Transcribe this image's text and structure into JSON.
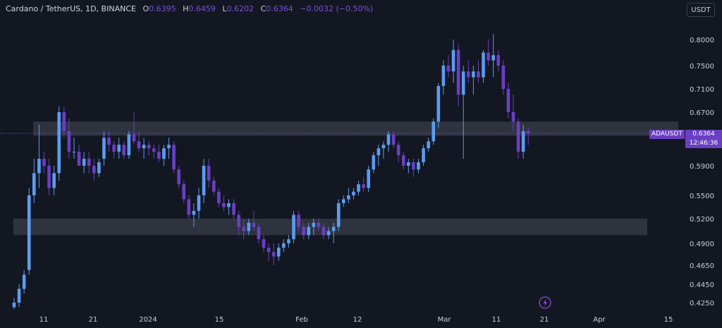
{
  "header": {
    "symbol": "Cardano / TetherUS, 1D, BINANCE",
    "o_label": "O",
    "o_value": "0.6395",
    "h_label": "H",
    "h_value": "0.6459",
    "l_label": "L",
    "l_value": "0.6202",
    "c_label": "C",
    "c_value": "0.6364",
    "change": "−0.0032 (−0.50%)"
  },
  "unit_button": "USDT",
  "price_tag": "ADAUSDT",
  "last_price": {
    "price": "0.6364",
    "countdown": "12:46:36"
  },
  "lightning_icon": "lightning-icon",
  "colors": {
    "background": "#131722",
    "up": "#5b9cf0",
    "down": "#6a3fc4",
    "zone": "#3a3d48",
    "tag": "#6a3fc4"
  },
  "chart_data": {
    "type": "candlestick",
    "title": "Cardano / TetherUS, 1D, BINANCE",
    "ylim": [
      0.42,
      0.83
    ],
    "y_ticks": [
      "0.8000",
      "0.7500",
      "0.7100",
      "0.6700",
      "0.6364",
      "0.5900",
      "0.5500",
      "0.5200",
      "0.4900",
      "0.4650",
      "0.4450",
      "0.4250"
    ],
    "x_tick_labels": [
      "11",
      "21",
      "2024",
      "15",
      "Feb",
      "12",
      "Mar",
      "11",
      "21",
      "Apr",
      "15"
    ],
    "zones": [
      {
        "low": 0.633,
        "high": 0.655
      },
      {
        "low": 0.5,
        "high": 0.52
      }
    ],
    "last_price": 0.6364,
    "candles": [
      [
        0.42,
        0.43,
        0.418,
        0.425
      ],
      [
        0.425,
        0.445,
        0.42,
        0.44
      ],
      [
        0.44,
        0.46,
        0.435,
        0.455
      ],
      [
        0.46,
        0.56,
        0.455,
        0.55
      ],
      [
        0.55,
        0.6,
        0.54,
        0.58
      ],
      [
        0.58,
        0.65,
        0.56,
        0.6
      ],
      [
        0.6,
        0.61,
        0.58,
        0.59
      ],
      [
        0.59,
        0.6,
        0.55,
        0.56
      ],
      [
        0.56,
        0.59,
        0.55,
        0.58
      ],
      [
        0.58,
        0.68,
        0.57,
        0.67
      ],
      [
        0.67,
        0.68,
        0.63,
        0.64
      ],
      [
        0.64,
        0.66,
        0.6,
        0.61
      ],
      [
        0.61,
        0.63,
        0.6,
        0.61
      ],
      [
        0.61,
        0.62,
        0.59,
        0.59
      ],
      [
        0.59,
        0.61,
        0.58,
        0.6
      ],
      [
        0.6,
        0.61,
        0.58,
        0.59
      ],
      [
        0.59,
        0.6,
        0.57,
        0.58
      ],
      [
        0.58,
        0.6,
        0.575,
        0.595
      ],
      [
        0.6,
        0.64,
        0.59,
        0.63
      ],
      [
        0.63,
        0.64,
        0.61,
        0.62
      ],
      [
        0.62,
        0.625,
        0.6,
        0.61
      ],
      [
        0.61,
        0.63,
        0.6,
        0.62
      ],
      [
        0.62,
        0.625,
        0.6,
        0.605
      ],
      [
        0.605,
        0.64,
        0.6,
        0.635
      ],
      [
        0.635,
        0.67,
        0.62,
        0.625
      ],
      [
        0.625,
        0.64,
        0.61,
        0.615
      ],
      [
        0.615,
        0.63,
        0.6,
        0.62
      ],
      [
        0.62,
        0.625,
        0.605,
        0.615
      ],
      [
        0.615,
        0.62,
        0.6,
        0.61
      ],
      [
        0.61,
        0.62,
        0.595,
        0.6
      ],
      [
        0.6,
        0.62,
        0.59,
        0.615
      ],
      [
        0.615,
        0.63,
        0.6,
        0.62
      ],
      [
        0.62,
        0.625,
        0.58,
        0.585
      ],
      [
        0.585,
        0.59,
        0.56,
        0.565
      ],
      [
        0.565,
        0.57,
        0.54,
        0.545
      ],
      [
        0.545,
        0.55,
        0.52,
        0.525
      ],
      [
        0.525,
        0.54,
        0.51,
        0.53
      ],
      [
        0.53,
        0.56,
        0.52,
        0.55
      ],
      [
        0.55,
        0.6,
        0.54,
        0.59
      ],
      [
        0.59,
        0.6,
        0.56,
        0.57
      ],
      [
        0.57,
        0.575,
        0.55,
        0.555
      ],
      [
        0.555,
        0.56,
        0.535,
        0.54
      ],
      [
        0.54,
        0.55,
        0.53,
        0.535
      ],
      [
        0.535,
        0.545,
        0.525,
        0.54
      ],
      [
        0.54,
        0.545,
        0.52,
        0.525
      ],
      [
        0.525,
        0.53,
        0.5,
        0.51
      ],
      [
        0.51,
        0.52,
        0.495,
        0.505
      ],
      [
        0.505,
        0.52,
        0.5,
        0.515
      ],
      [
        0.515,
        0.53,
        0.505,
        0.51
      ],
      [
        0.51,
        0.515,
        0.49,
        0.495
      ],
      [
        0.495,
        0.5,
        0.48,
        0.485
      ],
      [
        0.485,
        0.49,
        0.47,
        0.48
      ],
      [
        0.48,
        0.49,
        0.465,
        0.475
      ],
      [
        0.475,
        0.49,
        0.47,
        0.485
      ],
      [
        0.485,
        0.495,
        0.48,
        0.49
      ],
      [
        0.49,
        0.5,
        0.485,
        0.495
      ],
      [
        0.495,
        0.53,
        0.49,
        0.525
      ],
      [
        0.525,
        0.53,
        0.505,
        0.51
      ],
      [
        0.51,
        0.515,
        0.495,
        0.5
      ],
      [
        0.5,
        0.515,
        0.495,
        0.51
      ],
      [
        0.51,
        0.52,
        0.5,
        0.515
      ],
      [
        0.515,
        0.52,
        0.505,
        0.51
      ],
      [
        0.51,
        0.515,
        0.495,
        0.5
      ],
      [
        0.5,
        0.51,
        0.495,
        0.505
      ],
      [
        0.505,
        0.515,
        0.49,
        0.51
      ],
      [
        0.51,
        0.545,
        0.505,
        0.54
      ],
      [
        0.54,
        0.55,
        0.535,
        0.545
      ],
      [
        0.545,
        0.56,
        0.54,
        0.55
      ],
      [
        0.55,
        0.56,
        0.545,
        0.555
      ],
      [
        0.555,
        0.57,
        0.55,
        0.565
      ],
      [
        0.565,
        0.575,
        0.555,
        0.56
      ],
      [
        0.56,
        0.59,
        0.555,
        0.585
      ],
      [
        0.585,
        0.61,
        0.58,
        0.605
      ],
      [
        0.605,
        0.62,
        0.59,
        0.615
      ],
      [
        0.615,
        0.625,
        0.6,
        0.62
      ],
      [
        0.62,
        0.64,
        0.61,
        0.635
      ],
      [
        0.635,
        0.64,
        0.615,
        0.62
      ],
      [
        0.62,
        0.625,
        0.595,
        0.605
      ],
      [
        0.605,
        0.61,
        0.585,
        0.59
      ],
      [
        0.59,
        0.6,
        0.58,
        0.595
      ],
      [
        0.595,
        0.6,
        0.575,
        0.585
      ],
      [
        0.585,
        0.6,
        0.58,
        0.595
      ],
      [
        0.595,
        0.62,
        0.59,
        0.615
      ],
      [
        0.615,
        0.63,
        0.61,
        0.625
      ],
      [
        0.625,
        0.66,
        0.62,
        0.655
      ],
      [
        0.655,
        0.72,
        0.645,
        0.715
      ],
      [
        0.715,
        0.76,
        0.7,
        0.75
      ],
      [
        0.75,
        0.77,
        0.73,
        0.74
      ],
      [
        0.74,
        0.8,
        0.72,
        0.78
      ],
      [
        0.78,
        0.79,
        0.68,
        0.7
      ],
      [
        0.7,
        0.75,
        0.6,
        0.74
      ],
      [
        0.74,
        0.76,
        0.72,
        0.73
      ],
      [
        0.73,
        0.75,
        0.7,
        0.74
      ],
      [
        0.74,
        0.76,
        0.72,
        0.73
      ],
      [
        0.73,
        0.78,
        0.72,
        0.775
      ],
      [
        0.775,
        0.8,
        0.75,
        0.76
      ],
      [
        0.76,
        0.81,
        0.73,
        0.77
      ],
      [
        0.77,
        0.78,
        0.74,
        0.75
      ],
      [
        0.75,
        0.76,
        0.7,
        0.71
      ],
      [
        0.71,
        0.72,
        0.66,
        0.67
      ],
      [
        0.67,
        0.7,
        0.64,
        0.655
      ],
      [
        0.655,
        0.66,
        0.6,
        0.61
      ],
      [
        0.61,
        0.65,
        0.6,
        0.64
      ],
      [
        0.64,
        0.646,
        0.62,
        0.636
      ]
    ]
  }
}
